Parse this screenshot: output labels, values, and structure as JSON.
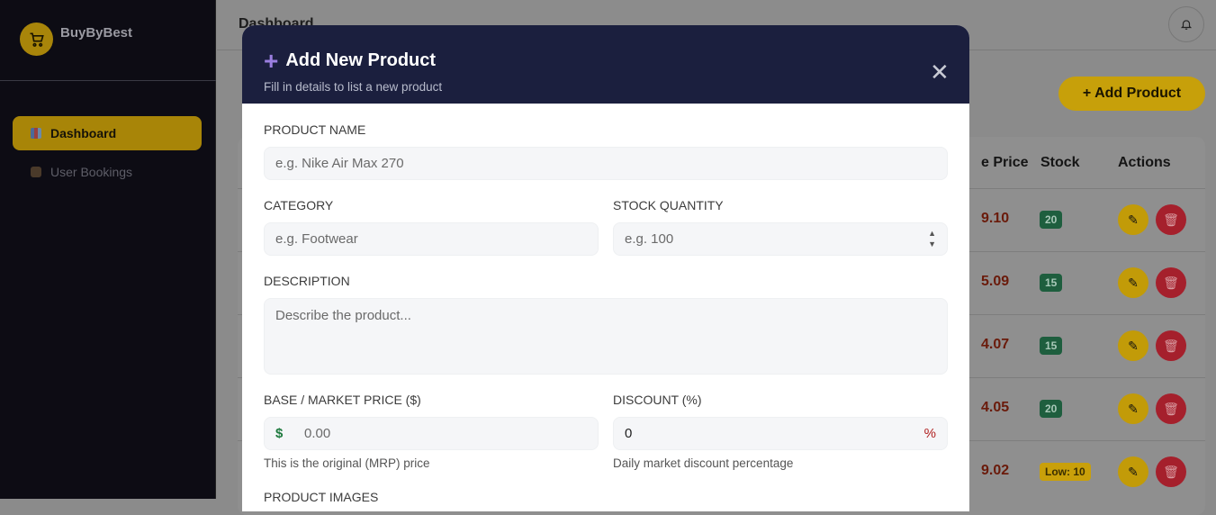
{
  "sidebar": {
    "brand": "BuyByBest",
    "items": [
      {
        "label": "Dashboard",
        "active": true
      },
      {
        "label": "User Bookings"
      }
    ]
  },
  "header": {
    "title": "Dashboard",
    "bell_icon": "bell-icon"
  },
  "main": {
    "add_button": "+ Add Product",
    "table": {
      "headers": [
        "e Price",
        "Stock",
        "Actions"
      ],
      "rows": [
        {
          "price": "9.10",
          "stock": "20",
          "status": "ok"
        },
        {
          "price": "5.09",
          "stock": "15",
          "status": "ok"
        },
        {
          "price": "4.07",
          "stock": "15",
          "status": "ok"
        },
        {
          "price": "4.05",
          "stock": "20",
          "status": "ok"
        },
        {
          "price": "9.02",
          "stock": "Low: 10",
          "status": "low"
        }
      ]
    }
  },
  "modal": {
    "title": "Add New Product",
    "subtitle": "Fill in details to list a new product",
    "fields": {
      "name": {
        "label": "PRODUCT NAME",
        "placeholder": "e.g. Nike Air Max 270"
      },
      "category": {
        "label": "CATEGORY",
        "placeholder": "e.g. Footwear"
      },
      "stock": {
        "label": "STOCK QUANTITY",
        "placeholder": "e.g. 100"
      },
      "description": {
        "label": "DESCRIPTION",
        "placeholder": "Describe the product..."
      },
      "price": {
        "label": "BASE / MARKET PRICE ($)",
        "prefix": "$",
        "placeholder": "0.00",
        "hint": "This is the original (MRP) price"
      },
      "discount": {
        "label": "DISCOUNT (%)",
        "value": "0",
        "suffix": "%",
        "hint": "Daily market discount percentage"
      },
      "images": {
        "label": "PRODUCT IMAGES"
      }
    }
  },
  "colors": {
    "accent": "#f5c518",
    "modal_header": "#1b1f3e",
    "danger": "#c0283a",
    "success": "#1e7a4e"
  }
}
